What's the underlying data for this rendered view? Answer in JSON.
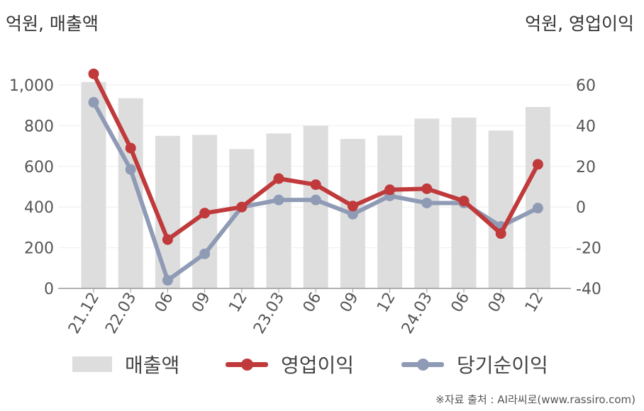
{
  "units": {
    "left": "억원, 매출액",
    "right": "억원, 영업이익"
  },
  "chart_data": {
    "type": "bar+line",
    "categories": [
      "21.12",
      "22.03",
      "06",
      "09",
      "12",
      "23.03",
      "06",
      "09",
      "12",
      "24.03",
      "06",
      "09",
      "12"
    ],
    "left_axis": {
      "ylim": [
        0,
        1000
      ],
      "ticks": [
        "0",
        "200",
        "400",
        "600",
        "800",
        "1,000"
      ]
    },
    "right_axis": {
      "ylim": [
        -40,
        60
      ],
      "ticks": [
        "-40",
        "-20",
        "0",
        "20",
        "40",
        "60"
      ]
    },
    "bar_series": {
      "name": "매출액",
      "axis": "left",
      "color": "#dddddd",
      "values": [
        1015,
        935,
        750,
        755,
        685,
        762,
        800,
        735,
        752,
        835,
        840,
        776,
        892
      ]
    },
    "line_series": [
      {
        "name": "영업이익",
        "axis": "right",
        "color": "#c0393b",
        "values": [
          65.5,
          29,
          -16,
          -3,
          0,
          14,
          11,
          0.5,
          8.5,
          9,
          3,
          -13,
          21
        ]
      },
      {
        "name": "당기순이익",
        "axis": "right",
        "color": "#8f9bb5",
        "values": [
          51.5,
          18.5,
          -36,
          -23,
          0,
          3.5,
          3.5,
          -3.5,
          5.5,
          2,
          2,
          -9.5,
          -0.5
        ]
      }
    ],
    "grid": true,
    "legend_position": "bottom"
  },
  "legend": {
    "revenue": "매출액",
    "operating_profit": "영업이익",
    "net_income": "당기순이익"
  },
  "source": "※자료 출처 : AI라씨로(www.rassiro.com)"
}
